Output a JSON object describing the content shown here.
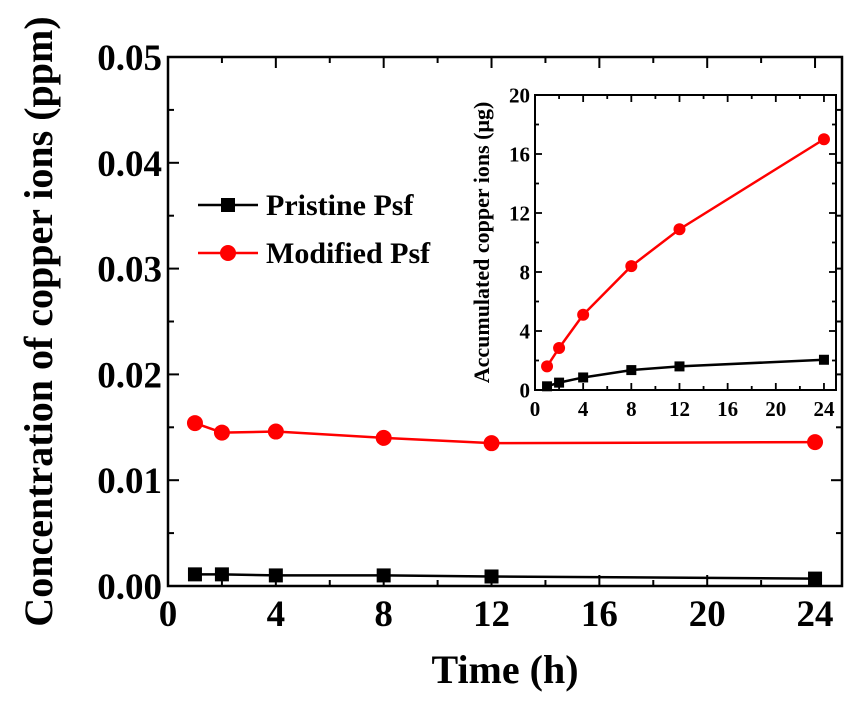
{
  "chart_data": [
    {
      "type": "line",
      "xlabel": "Time (h)",
      "ylabel": "Concentration of copper ions (ppm)",
      "xlim": [
        0,
        25
      ],
      "ylim": [
        0,
        0.05
      ],
      "x_ticks": [
        "0",
        "4",
        "8",
        "12",
        "16",
        "20",
        "24"
      ],
      "y_ticks": [
        "0.00",
        "0.01",
        "0.02",
        "0.03",
        "0.04",
        "0.05"
      ],
      "x": [
        1,
        2,
        4,
        8,
        12,
        24
      ],
      "legend_position": "upper-left",
      "series": [
        {
          "name": "Pristine Psf",
          "color": "#000000",
          "marker": "square",
          "values": [
            0.0011,
            0.0011,
            0.001,
            0.001,
            0.0009,
            0.0007
          ]
        },
        {
          "name": "Modified Psf",
          "color": "#ff0000",
          "marker": "circle",
          "values": [
            0.0154,
            0.0145,
            0.0146,
            0.014,
            0.0135,
            0.0136
          ]
        }
      ]
    },
    {
      "type": "line",
      "inset": true,
      "xlabel": "",
      "ylabel": "Accumulated copper ions (μg)",
      "xlim": [
        0,
        25
      ],
      "ylim": [
        0,
        20
      ],
      "x_ticks": [
        "0",
        "4",
        "8",
        "12",
        "16",
        "20",
        "24"
      ],
      "y_ticks": [
        "0",
        "4",
        "8",
        "12",
        "16",
        "20"
      ],
      "x": [
        1,
        2,
        4,
        8,
        12,
        24
      ],
      "series": [
        {
          "name": "Pristine Psf",
          "color": "#000000",
          "marker": "square",
          "values": [
            0.25,
            0.5,
            0.85,
            1.35,
            1.6,
            2.05
          ]
        },
        {
          "name": "Modified Psf",
          "color": "#ff0000",
          "marker": "circle",
          "values": [
            1.6,
            2.85,
            5.1,
            8.4,
            10.9,
            17.0
          ]
        }
      ]
    }
  ]
}
